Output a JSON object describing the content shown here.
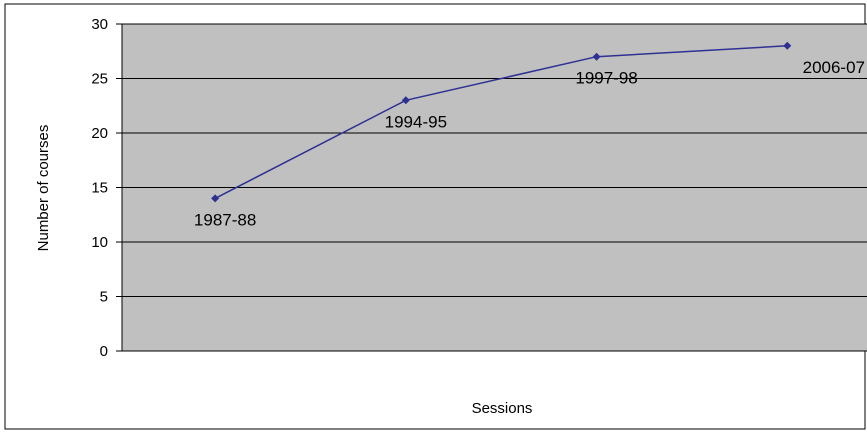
{
  "chart_data": {
    "type": "line",
    "title": "",
    "xlabel": "Sessions",
    "ylabel": "Number of courses",
    "ylim": [
      0,
      30
    ],
    "yticks": [
      0,
      5,
      10,
      15,
      20,
      25,
      30
    ],
    "grid": true,
    "legend": "none",
    "categories": [
      "1987-88",
      "1994-95",
      "1997-98",
      "2006-07"
    ],
    "series": [
      {
        "values": [
          14,
          23,
          27,
          28
        ],
        "color": "#2e3192"
      }
    ],
    "colors": {
      "plot_bg": "#c0c0c0",
      "gridline": "#000000",
      "page_bg": "#ffffff"
    }
  }
}
